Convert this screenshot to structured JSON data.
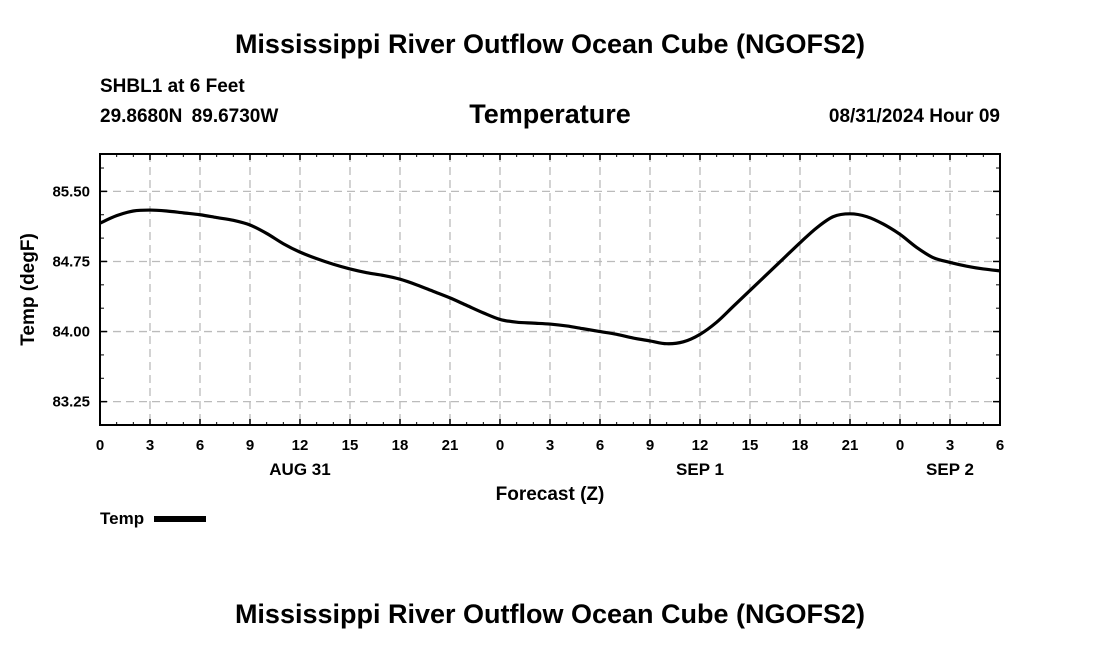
{
  "header": {
    "title": "Mississippi River Outflow Ocean Cube (NGOFS2)",
    "station": "SHBL1 at 6 Feet",
    "coords": "29.8680N  89.6730W",
    "datetime": "08/31/2024 Hour 09"
  },
  "footer": {
    "title": "Mississippi River Outflow Ocean Cube (NGOFS2)"
  },
  "colors": {
    "line": "#000000",
    "grid": "#bbbbbb"
  },
  "chart_data": {
    "type": "line",
    "title": "Temperature",
    "xlabel": "Forecast (Z)",
    "ylabel": "Temp (degF)",
    "xlim": [
      0,
      54
    ],
    "ylim": [
      83.0,
      85.9
    ],
    "grid": true,
    "x_tick_values": [
      0,
      3,
      6,
      9,
      12,
      15,
      18,
      21,
      24,
      27,
      30,
      33,
      36,
      39,
      42,
      45,
      48,
      51,
      54
    ],
    "x_tick_labels": [
      "0",
      "3",
      "6",
      "9",
      "12",
      "15",
      "18",
      "21",
      "0",
      "3",
      "6",
      "9",
      "12",
      "15",
      "18",
      "21",
      "0",
      "3",
      "6"
    ],
    "y_tick_values": [
      83.25,
      84.0,
      84.75,
      85.5
    ],
    "y_tick_labels": [
      "83.25",
      "84.00",
      "84.75",
      "85.50"
    ],
    "day_labels": [
      {
        "x": 12,
        "label": "AUG 31"
      },
      {
        "x": 36,
        "label": "SEP 1"
      },
      {
        "x": 51,
        "label": "SEP 2"
      }
    ],
    "legend": {
      "label": "Temp",
      "position": "bottom-left"
    },
    "series": [
      {
        "name": "Temp",
        "x": [
          0,
          1,
          2,
          3,
          4,
          5,
          6,
          7,
          8,
          9,
          10,
          11,
          12,
          13,
          14,
          15,
          16,
          17,
          18,
          19,
          20,
          21,
          22,
          23,
          24,
          25,
          26,
          27,
          28,
          29,
          30,
          31,
          32,
          33,
          34,
          35,
          36,
          37,
          38,
          39,
          40,
          41,
          42,
          43,
          44,
          45,
          46,
          47,
          48,
          49,
          50,
          51,
          52,
          53,
          54
        ],
        "y": [
          85.16,
          85.24,
          85.29,
          85.3,
          85.29,
          85.27,
          85.25,
          85.22,
          85.19,
          85.14,
          85.05,
          84.94,
          84.85,
          84.78,
          84.72,
          84.67,
          84.63,
          84.6,
          84.56,
          84.5,
          84.43,
          84.36,
          84.28,
          84.2,
          84.13,
          84.1,
          84.09,
          84.08,
          84.06,
          84.03,
          84.0,
          83.97,
          83.93,
          83.9,
          83.87,
          83.89,
          83.97,
          84.1,
          84.27,
          84.44,
          84.61,
          84.78,
          84.95,
          85.11,
          85.23,
          85.26,
          85.23,
          85.15,
          85.04,
          84.9,
          84.79,
          84.74,
          84.7,
          84.67,
          84.65
        ]
      }
    ]
  }
}
